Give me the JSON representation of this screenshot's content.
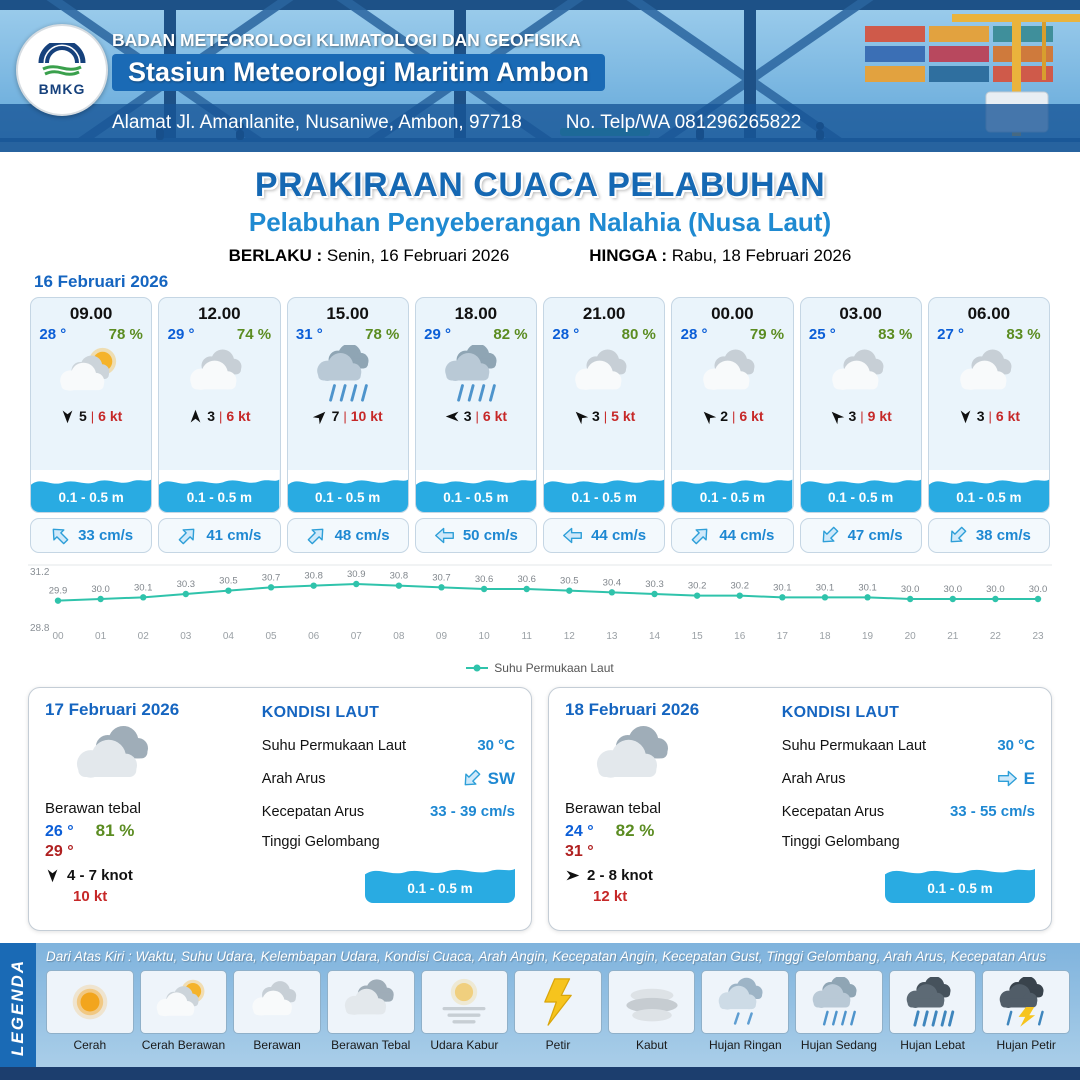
{
  "colors": {
    "primary_blue": "#1568b3",
    "subtitle_blue": "#1f8ad1",
    "wave_blue": "#29abe2",
    "temp_blue": "#0b5ed7",
    "humidity_green": "#5b8c21",
    "gust_red": "#c62828",
    "chart_teal": "#2fc3ab"
  },
  "header": {
    "agency": "BADAN METEOROLOGI KLIMATOLOGI DAN GEOFISIKA",
    "station": "Stasiun Meteorologi Maritim Ambon",
    "address": "Alamat Jl. Amanlanite, Nusaniwe, Ambon, 97718",
    "phone": "No. Telp/WA  081296265822",
    "logo_text": "BMKG"
  },
  "title": {
    "main": "PRAKIRAAN CUACA PELABUHAN",
    "subtitle": "Pelabuhan Penyeberangan Nalahia (Nusa Laut)",
    "berlaku_label": "BERLAKU :",
    "berlaku_value": "Senin, 16 Februari 2026",
    "hingga_label": "HINGGA :",
    "hingga_value": "Rabu, 18 Februari 2026"
  },
  "forecast": {
    "date": "16 Februari 2026",
    "cards": [
      {
        "time": "09.00",
        "temp": "28 °",
        "humidity": "78 %",
        "icon": "cerah-berawan",
        "wind_dir_deg": 180,
        "wind_speed": "5",
        "wind_gust": "6 kt",
        "wave": "0.1 - 0.5 m",
        "current_dir_deg": 315,
        "current_speed": "33 cm/s"
      },
      {
        "time": "12.00",
        "temp": "29 °",
        "humidity": "74 %",
        "icon": "berawan",
        "wind_dir_deg": 0,
        "wind_speed": "3",
        "wind_gust": "6 kt",
        "wave": "0.1 - 0.5 m",
        "current_dir_deg": 45,
        "current_speed": "41 cm/s"
      },
      {
        "time": "15.00",
        "temp": "31 °",
        "humidity": "78 %",
        "icon": "hujan-sedang",
        "wind_dir_deg": 45,
        "wind_speed": "7",
        "wind_gust": "10 kt",
        "wave": "0.1 - 0.5 m",
        "current_dir_deg": 45,
        "current_speed": "48 cm/s"
      },
      {
        "time": "18.00",
        "temp": "29 °",
        "humidity": "82 %",
        "icon": "hujan-sedang",
        "wind_dir_deg": 270,
        "wind_speed": "3",
        "wind_gust": "6 kt",
        "wave": "0.1 - 0.5 m",
        "current_dir_deg": 270,
        "current_speed": "50 cm/s"
      },
      {
        "time": "21.00",
        "temp": "28 °",
        "humidity": "80 %",
        "icon": "berawan",
        "wind_dir_deg": 315,
        "wind_speed": "3",
        "wind_gust": "5 kt",
        "wave": "0.1 - 0.5 m",
        "current_dir_deg": 270,
        "current_speed": "44 cm/s"
      },
      {
        "time": "00.00",
        "temp": "28 °",
        "humidity": "79 %",
        "icon": "berawan",
        "wind_dir_deg": 315,
        "wind_speed": "2",
        "wind_gust": "6 kt",
        "wave": "0.1 - 0.5 m",
        "current_dir_deg": 45,
        "current_speed": "44 cm/s"
      },
      {
        "time": "03.00",
        "temp": "25 °",
        "humidity": "83 %",
        "icon": "berawan",
        "wind_dir_deg": 315,
        "wind_speed": "3",
        "wind_gust": "9 kt",
        "wave": "0.1 - 0.5 m",
        "current_dir_deg": 225,
        "current_speed": "47 cm/s"
      },
      {
        "time": "06.00",
        "temp": "27 °",
        "humidity": "83 %",
        "icon": "berawan",
        "wind_dir_deg": 180,
        "wind_speed": "3",
        "wind_gust": "6 kt",
        "wave": "0.1 - 0.5 m",
        "current_dir_deg": 225,
        "current_speed": "38 cm/s"
      }
    ]
  },
  "chart_data": {
    "type": "line",
    "series_label": "Suhu Permukaan Laut",
    "unit": "°C",
    "x": [
      "00",
      "01",
      "02",
      "03",
      "04",
      "05",
      "06",
      "07",
      "08",
      "09",
      "10",
      "11",
      "12",
      "13",
      "14",
      "15",
      "16",
      "17",
      "18",
      "19",
      "20",
      "21",
      "22",
      "23"
    ],
    "values": [
      29.9,
      30.0,
      30.1,
      30.3,
      30.5,
      30.7,
      30.8,
      30.9,
      30.8,
      30.7,
      30.6,
      30.6,
      30.5,
      30.4,
      30.3,
      30.2,
      30.2,
      30.1,
      30.1,
      30.1,
      30.0,
      30.0,
      30.0,
      30.0
    ],
    "ylim": [
      28.8,
      31.2
    ],
    "line_color": "#2fc3ab",
    "legend_position": "bottom",
    "grid": false
  },
  "summary": {
    "labels": {
      "kondisi_laut": "KONDISI LAUT",
      "sst": "Suhu Permukaan Laut",
      "arah_arus": "Arah Arus",
      "kecepatan_arus": "Kecepatan Arus",
      "tinggi_gelombang": "Tinggi Gelombang"
    },
    "cards": [
      {
        "date": "17 Februari 2026",
        "icon": "berawan-tebal",
        "condition": "Berawan tebal",
        "temp_min": "26 °",
        "temp_max": "29 °",
        "humidity": "81 %",
        "wind_dir_deg": 180,
        "wind_range": "4 - 7 knot",
        "gust": "10 kt",
        "sea_temp": "30 °C",
        "current_dir": "SW",
        "current_dir_deg": 225,
        "current_speed": "33 - 39 cm/s",
        "wave": "0.1 - 0.5 m"
      },
      {
        "date": "18 Februari 2026",
        "icon": "berawan-tebal",
        "condition": "Berawan tebal",
        "temp_min": "24 °",
        "temp_max": "31 °",
        "humidity": "82 %",
        "wind_dir_deg": 90,
        "wind_range": "2 - 8 knot",
        "gust": "12 kt",
        "sea_temp": "30 °C",
        "current_dir": "E",
        "current_dir_deg": 90,
        "current_speed": "33 - 55 cm/s",
        "wave": "0.1 - 0.5 m"
      }
    ]
  },
  "legend": {
    "title": "LEGENDA",
    "description": "Dari Atas Kiri : Waktu, Suhu Udara, Kelembapan Udara, Kondisi Cuaca, Arah Angin, Kecepatan Angin, Kecepatan Gust, Tinggi Gelombang, Arah Arus, Kecepatan Arus",
    "items": [
      {
        "label": "Cerah",
        "icon": "cerah"
      },
      {
        "label": "Cerah Berawan",
        "icon": "cerah-berawan"
      },
      {
        "label": "Berawan",
        "icon": "berawan"
      },
      {
        "label": "Berawan Tebal",
        "icon": "berawan-tebal"
      },
      {
        "label": "Udara Kabur",
        "icon": "udara-kabur"
      },
      {
        "label": "Petir",
        "icon": "petir"
      },
      {
        "label": "Kabut",
        "icon": "kabut"
      },
      {
        "label": "Hujan Ringan",
        "icon": "hujan-ringan"
      },
      {
        "label": "Hujan Sedang",
        "icon": "hujan-sedang"
      },
      {
        "label": "Hujan Lebat",
        "icon": "hujan-lebat"
      },
      {
        "label": "Hujan Petir",
        "icon": "hujan-petir"
      }
    ]
  }
}
